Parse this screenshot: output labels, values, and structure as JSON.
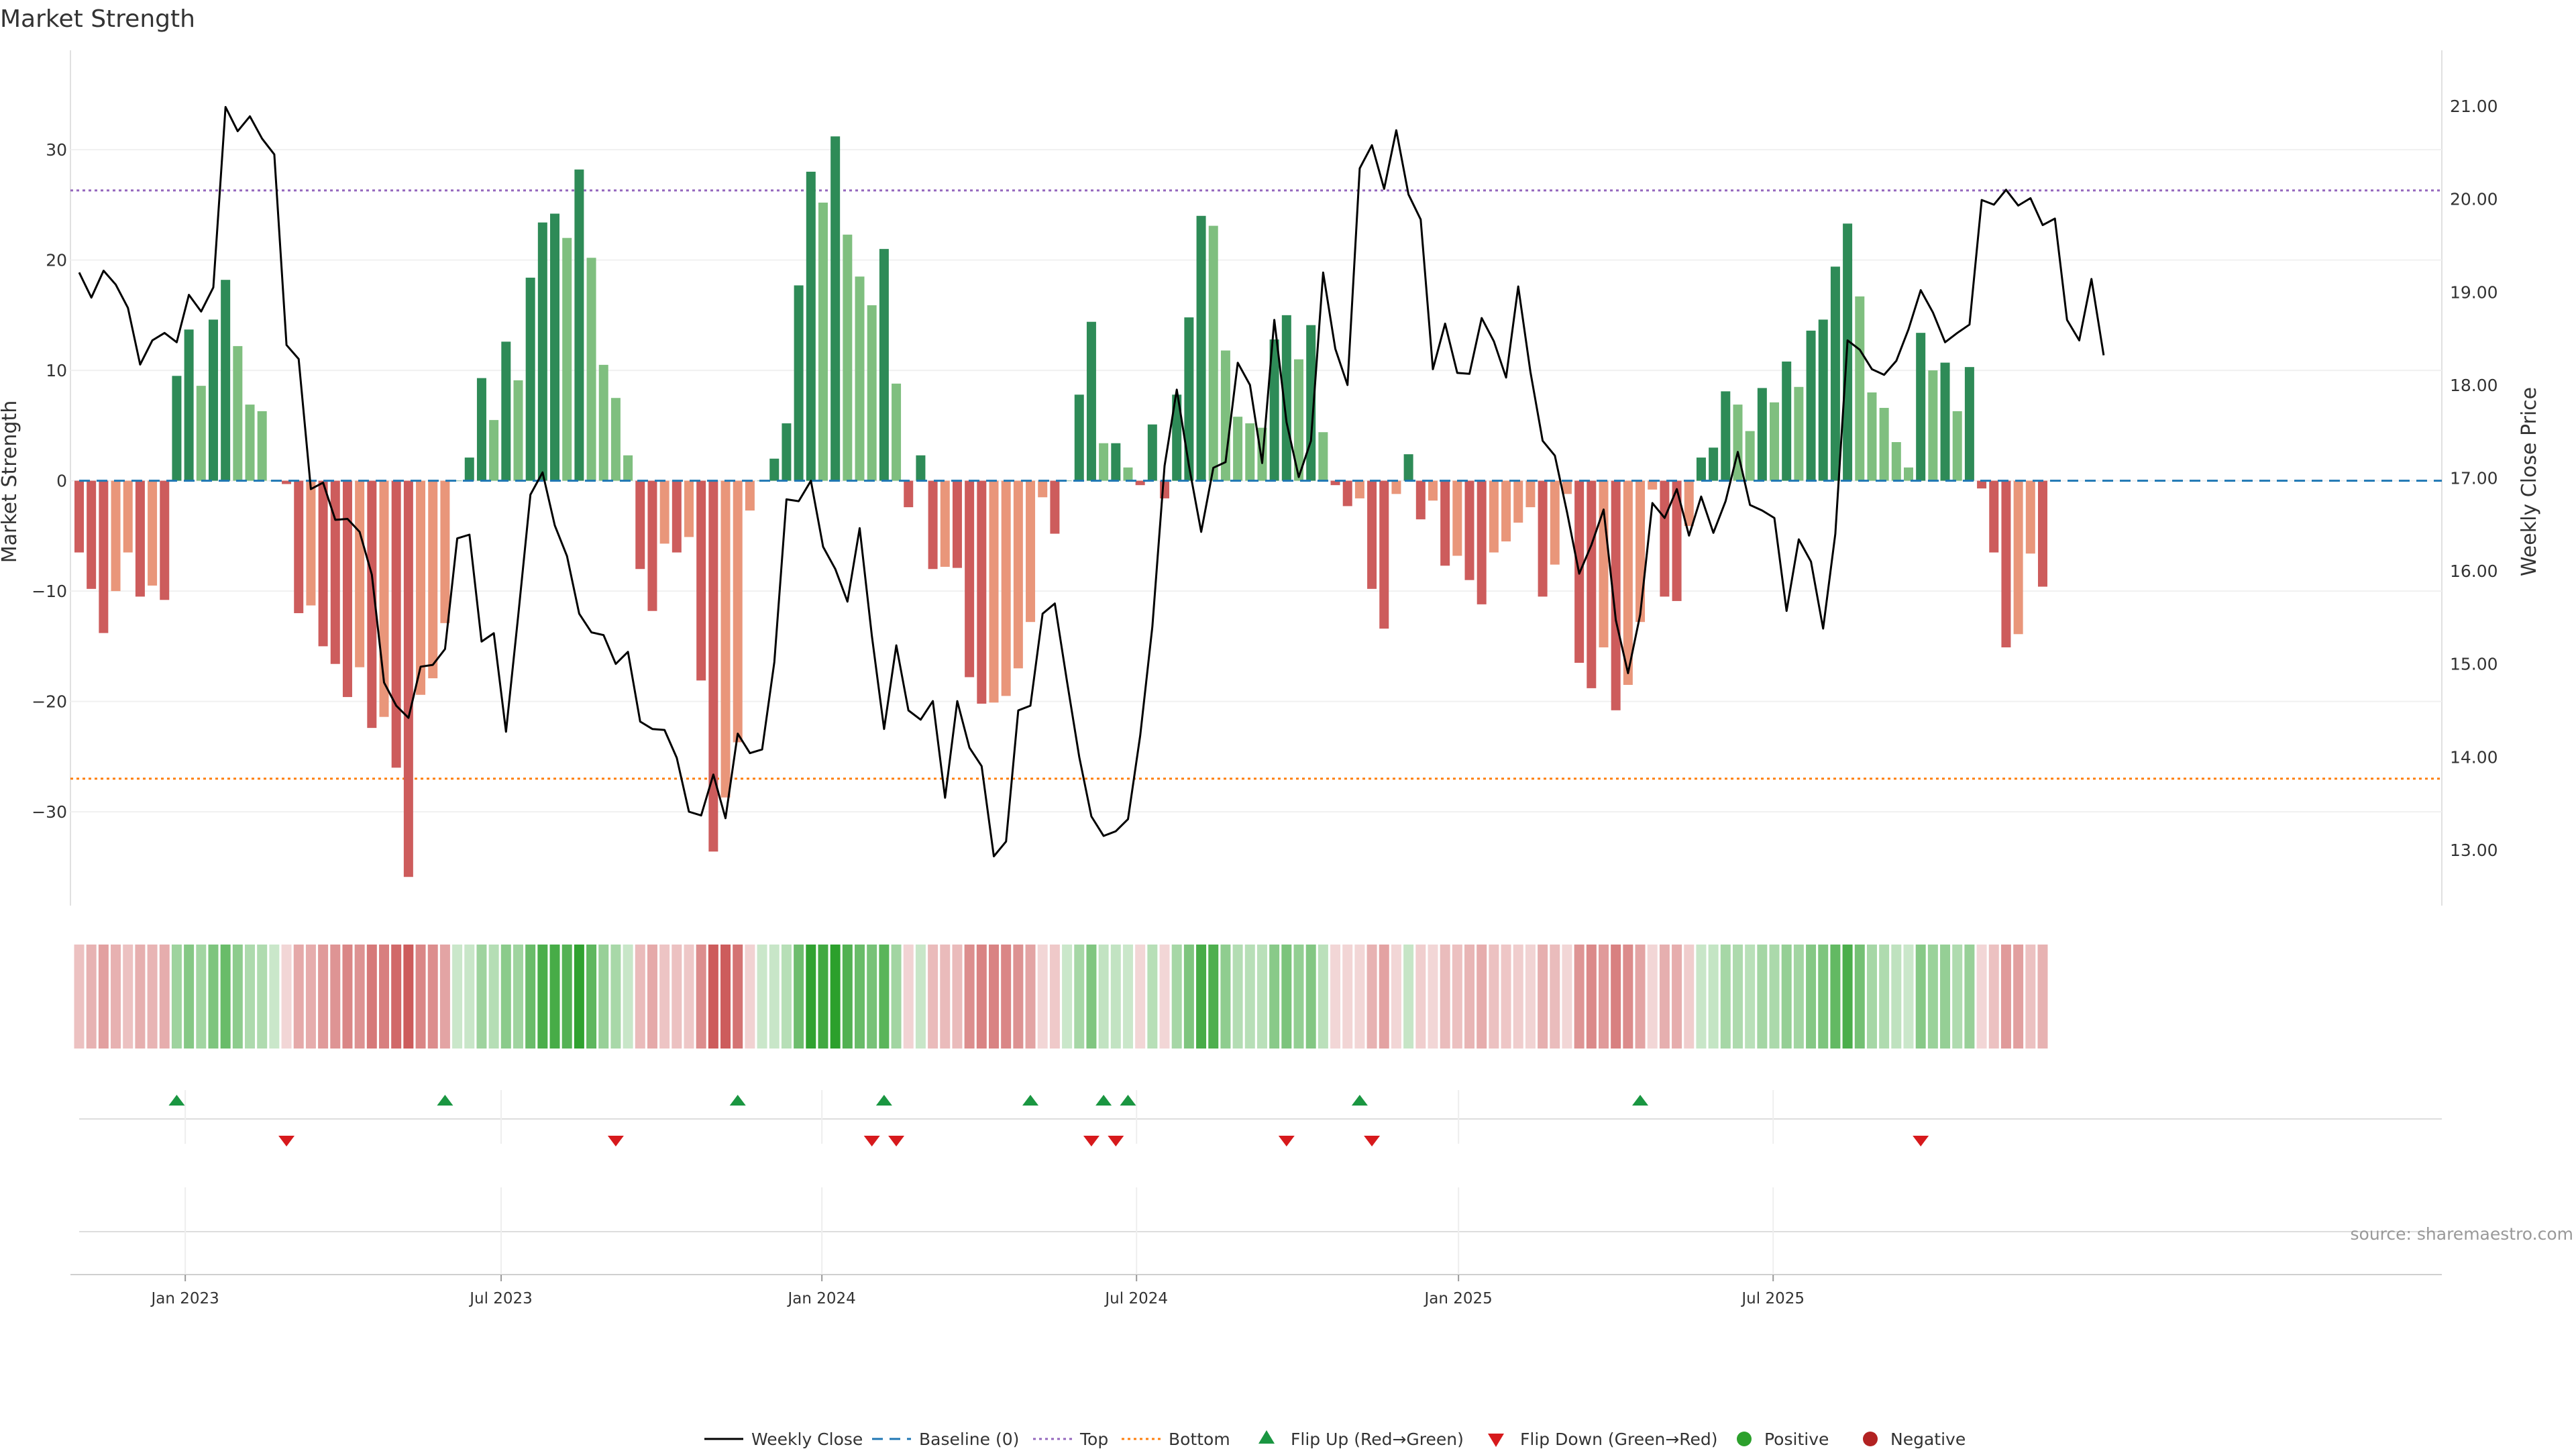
{
  "title": "Market Strength",
  "colors": {
    "strong_green": "#2e8b57",
    "light_green": "#7fbf7f",
    "strong_red": "#cd5c5c",
    "light_red": "#e9967a",
    "line": "#000000",
    "baseline": "#1f77b4",
    "top": "#9467bd",
    "bottom": "#ff7f0e",
    "flip_up": "#1a9641",
    "flip_down": "#d7191c",
    "positive": "#2ca02c",
    "negative": "#b22222"
  },
  "chart_data": {
    "type": "bar",
    "title": "Market Strength",
    "ylabel": "Market Strength",
    "y2label": "Weekly Close Price",
    "ylim": [
      -38.5,
      39
    ],
    "y2lim": [
      12.4,
      21.6
    ],
    "yticks": [
      "30",
      "20",
      "10",
      "0",
      "−10",
      "−20",
      "−30"
    ],
    "y2ticks": [
      "21.00",
      "20.00",
      "19.00",
      "18.00",
      "17.00",
      "16.00",
      "15.00",
      "14.00",
      "13.00"
    ],
    "date_ticks": [
      "Jan 2023",
      "Jul 2023",
      "Jan 2024",
      "Jul 2024",
      "Jan 2025",
      "Jul 2025"
    ],
    "date_tick_weeks": [
      8.7,
      34.6,
      60.9,
      86.7,
      113.1,
      138.9
    ],
    "top_level": 26.3,
    "bottom_level": -27.0,
    "baseline_level": 0,
    "strength": [
      -6.5,
      -9.8,
      -13.8,
      -10,
      -6.5,
      -10.5,
      -9.5,
      -10.8,
      9.5,
      13.7,
      8.6,
      14.6,
      18.2,
      12.2,
      6.9,
      6.3,
      0,
      -0.3,
      -12,
      -11.3,
      -15,
      -16.6,
      -19.6,
      -16.9,
      -22.4,
      -21.4,
      -26,
      -35.9,
      -19.4,
      -17.9,
      -12.9,
      0,
      2.1,
      9.3,
      5.5,
      12.6,
      9.1,
      18.4,
      23.4,
      24.2,
      22,
      28.2,
      20.2,
      10.5,
      7.5,
      2.3,
      -8,
      -11.8,
      -5.7,
      -6.5,
      -5.1,
      -18.1,
      -33.6,
      -28.7,
      -23.7,
      -2.7,
      0,
      2,
      5.2,
      17.7,
      28,
      25.2,
      31.2,
      22.3,
      18.5,
      15.9,
      21,
      8.8,
      -2.4,
      2.3,
      -8,
      -7.8,
      -7.9,
      -17.8,
      -20.2,
      -20.1,
      -19.5,
      -17,
      -12.8,
      -1.5,
      -4.8,
      0,
      7.8,
      14.4,
      3.4,
      3.4,
      1.2,
      -0.4,
      5.1,
      -1.6,
      7.8,
      14.8,
      24,
      23.1,
      11.8,
      5.8,
      5.2,
      4.8,
      12.8,
      15,
      11,
      14.1,
      4.4,
      -0.4,
      -2.3,
      -1.6,
      -9.8,
      -13.4,
      -1.2,
      2.4,
      -3.5,
      -1.8,
      -7.7,
      -6.8,
      -9,
      -11.2,
      -6.5,
      -5.5,
      -3.8,
      -2.4,
      -10.5,
      -7.6,
      -1.2,
      -16.5,
      -18.8,
      -15.1,
      -20.8,
      -18.5,
      -12.8,
      -0.8,
      -10.5,
      -10.9,
      -4.1,
      2.1,
      3,
      8.1,
      6.9,
      4.5,
      8.4,
      7.1,
      10.8,
      8.5,
      13.6,
      14.6,
      19.4,
      23.3,
      16.7,
      8,
      6.6,
      3.5,
      1.2,
      13.4,
      10,
      10.7,
      6.3,
      10.3,
      -0.7,
      -6.5,
      -15.1,
      -13.9,
      -6.6,
      -9.6
    ],
    "close": [
      19.21,
      18.94,
      19.23,
      19.08,
      18.83,
      18.22,
      18.48,
      18.56,
      18.46,
      18.97,
      18.79,
      19.05,
      20.99,
      20.73,
      20.89,
      20.65,
      20.48,
      18.43,
      18.28,
      16.88,
      16.95,
      16.55,
      16.56,
      16.42,
      15.96,
      14.8,
      14.55,
      14.42,
      14.97,
      14.99,
      15.16,
      16.35,
      16.39,
      15.24,
      15.33,
      14.27,
      15.52,
      16.82,
      17.06,
      16.49,
      16.16,
      15.54,
      15.34,
      15.31,
      15.0,
      15.13,
      14.38,
      14.3,
      14.29,
      13.99,
      13.41,
      13.37,
      13.81,
      13.34,
      14.25,
      14.04,
      14.08,
      15.02,
      16.77,
      16.75,
      16.97,
      16.26,
      16.02,
      15.67,
      16.46,
      15.3,
      14.3,
      15.2,
      14.5,
      14.4,
      14.6,
      13.56,
      14.6,
      14.1,
      13.9,
      12.93,
      13.09,
      14.5,
      14.55,
      15.54,
      15.65,
      14.81,
      14.0,
      13.36,
      13.15,
      13.2,
      13.33,
      14.23,
      15.4,
      17.13,
      17.95,
      17.13,
      16.42,
      17.11,
      17.17,
      18.24,
      18.0,
      17.16,
      18.7,
      17.6,
      17.01,
      17.4,
      19.21,
      18.39,
      18.0,
      20.33,
      20.58,
      20.11,
      20.74,
      20.05,
      19.78,
      18.17,
      18.66,
      18.13,
      18.12,
      18.72,
      18.47,
      18.08,
      19.06,
      18.14,
      17.4,
      17.24,
      16.63,
      15.97,
      16.28,
      16.66,
      15.47,
      14.9,
      15.53,
      16.73,
      16.57,
      16.88,
      16.38,
      16.8,
      16.41,
      16.75,
      17.28,
      16.71,
      16.65,
      16.57,
      15.57,
      16.34,
      16.1,
      15.38,
      16.4,
      18.48,
      18.38,
      18.17,
      18.11,
      18.26,
      18.6,
      19.02,
      18.78,
      18.46,
      18.56,
      18.65,
      19.99,
      19.94,
      20.1,
      19.93,
      20.01,
      19.72,
      19.79,
      18.7,
      18.48,
      19.14,
      18.32
    ],
    "flip_up_weeks": [
      8,
      30,
      54,
      66,
      78,
      84,
      86,
      105,
      128
    ],
    "flip_down_weeks": [
      17,
      44,
      65,
      67,
      83,
      85,
      99,
      106,
      151
    ]
  },
  "legend": [
    {
      "key": "weekly_close",
      "label": "Weekly Close"
    },
    {
      "key": "baseline",
      "label": "Baseline (0)"
    },
    {
      "key": "top",
      "label": "Top"
    },
    {
      "key": "bottom",
      "label": "Bottom"
    },
    {
      "key": "flip_up",
      "label": "Flip Up (Red→Green)"
    },
    {
      "key": "flip_down",
      "label": "Flip Down (Green→Red)"
    },
    {
      "key": "positive",
      "label": "Positive"
    },
    {
      "key": "negative",
      "label": "Negative"
    }
  ],
  "source": "source: sharemaestro.com"
}
